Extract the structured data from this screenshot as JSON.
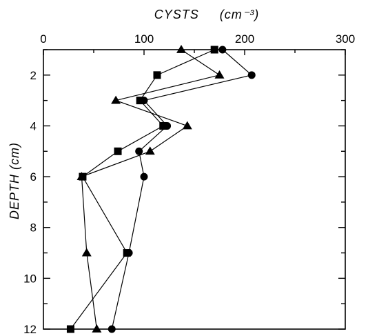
{
  "chart_data": {
    "type": "line",
    "title": "",
    "xlabel": "CYSTS",
    "xunit": "(cm⁻³)",
    "ylabel": "DEPTH (cm)",
    "xlim": [
      0,
      300
    ],
    "ylim": [
      1,
      12
    ],
    "y_inverted": true,
    "x_axis_position": "top",
    "x_ticks": [
      0,
      100,
      200,
      300
    ],
    "y_ticks": [
      2,
      4,
      6,
      8,
      10,
      12
    ],
    "grid": false,
    "series": [
      {
        "marker": "circle",
        "points": [
          {
            "x": 178,
            "y": 1
          },
          {
            "x": 207,
            "y": 2
          },
          {
            "x": 100,
            "y": 3
          },
          {
            "x": 123,
            "y": 4
          },
          {
            "x": 95,
            "y": 5
          },
          {
            "x": 100,
            "y": 6
          },
          {
            "x": 85,
            "y": 9
          },
          {
            "x": 68,
            "y": 12
          }
        ]
      },
      {
        "marker": "square",
        "points": [
          {
            "x": 170,
            "y": 1
          },
          {
            "x": 113,
            "y": 2
          },
          {
            "x": 96,
            "y": 3
          },
          {
            "x": 119,
            "y": 4
          },
          {
            "x": 74,
            "y": 5
          },
          {
            "x": 39,
            "y": 6
          },
          {
            "x": 83,
            "y": 9
          },
          {
            "x": 27,
            "y": 12
          }
        ]
      },
      {
        "marker": "triangle",
        "points": [
          {
            "x": 137,
            "y": 1
          },
          {
            "x": 175,
            "y": 2
          },
          {
            "x": 72,
            "y": 3
          },
          {
            "x": 143,
            "y": 4
          },
          {
            "x": 106,
            "y": 5
          },
          {
            "x": 38,
            "y": 6
          },
          {
            "x": 43,
            "y": 9
          },
          {
            "x": 53,
            "y": 12
          }
        ]
      }
    ]
  }
}
